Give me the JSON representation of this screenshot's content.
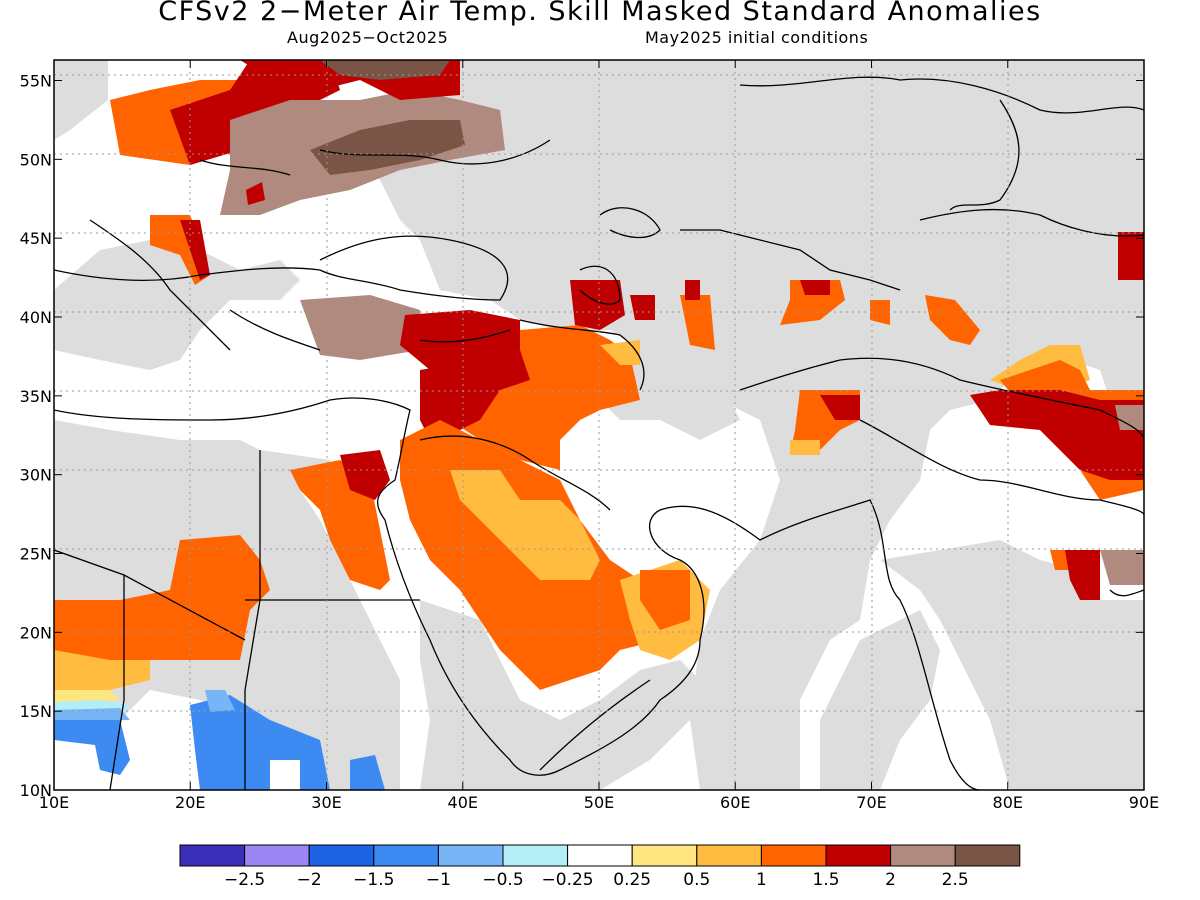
{
  "title": "CFSv2 2−Meter Air Temp. Skill Masked Standard Anomalies",
  "period": "Aug2025−Oct2025",
  "init": "May2025 initial conditions",
  "axes": {
    "lon_labels": [
      "10E",
      "20E",
      "30E",
      "40E",
      "50E",
      "60E",
      "70E",
      "80E",
      "90E"
    ],
    "lat_labels": [
      "55N",
      "50N",
      "45N",
      "40N",
      "35N",
      "30N",
      "25N",
      "20N",
      "15N",
      "10N"
    ],
    "lon_range": [
      10,
      90
    ],
    "lat_range": [
      10,
      56.3
    ],
    "grid": "dotted"
  },
  "colorbar": {
    "labels": [
      "−2.5",
      "−2",
      "−1.5",
      "−1",
      "−0.5",
      "−0.25",
      "0.25",
      "0.5",
      "1",
      "1.5",
      "2",
      "2.5"
    ],
    "colors": [
      "#3a2fb8",
      "#9a87f5",
      "#1e63e4",
      "#3c8af2",
      "#77b5f7",
      "#b3eef6",
      "#ffffff",
      "#ffe680",
      "#ffbc40",
      "#ff6400",
      "#c00000",
      "#b08a7e",
      "#7a5445"
    ],
    "masked_color": "#dddddd"
  },
  "chart_data": {
    "type": "heatmap",
    "variable": "2-Meter Air Temp. Standard Anomaly",
    "regions": [
      {
        "lon": [
          10,
          32
        ],
        "lat": [
          49.5,
          56
        ],
        "class": "1.5 to 2",
        "note": "Central Europe / Poland"
      },
      {
        "lon": [
          24,
          43
        ],
        "lat": [
          48,
          56
        ],
        "class": "2 to 2.5"
      },
      {
        "lon": [
          32,
          52
        ],
        "lat": [
          52,
          56
        ],
        "class": "1.5 to 2"
      },
      {
        "lon": [
          34,
          48
        ],
        "lat": [
          36,
          40
        ],
        "class": "2 to 2.5",
        "note": "Turkey"
      },
      {
        "lon": [
          40,
          58
        ],
        "lat": [
          34,
          41
        ],
        "class": "1.5 to 2",
        "note": "Caucasus / Iran"
      },
      {
        "lon": [
          36,
          46
        ],
        "lat": [
          30,
          36
        ],
        "class": "1.5 to 2",
        "note": "Syria / Iraq"
      },
      {
        "lon": [
          36,
          52
        ],
        "lat": [
          16,
          32
        ],
        "class": "1 to 1.5",
        "note": "Arabian Peninsula"
      },
      {
        "lon": [
          44,
          58
        ],
        "lat": [
          18,
          26
        ],
        "class": "0.5 to 1"
      },
      {
        "lon": [
          10,
          24
        ],
        "lat": [
          16,
          26
        ],
        "class": "1 to 1.5",
        "note": "Sahel / Sahara"
      },
      {
        "lon": [
          13,
          35
        ],
        "lat": [
          10,
          15.5
        ],
        "class": "-1.5 to -1",
        "note": "Sahel south"
      },
      {
        "lon": [
          64,
          69
        ],
        "lat": [
          31,
          35
        ],
        "class": "1 to 1.5",
        "note": "Afghanistan / Pakistan"
      },
      {
        "lon": [
          78,
          90
        ],
        "lat": [
          29,
          35
        ],
        "class": "1.5 to 2",
        "note": "Tibet / Himalaya"
      },
      {
        "lon": [
          83,
          88
        ],
        "lat": [
          22,
          25
        ],
        "class": "1.5 to 2",
        "note": "Bengal"
      }
    ]
  }
}
